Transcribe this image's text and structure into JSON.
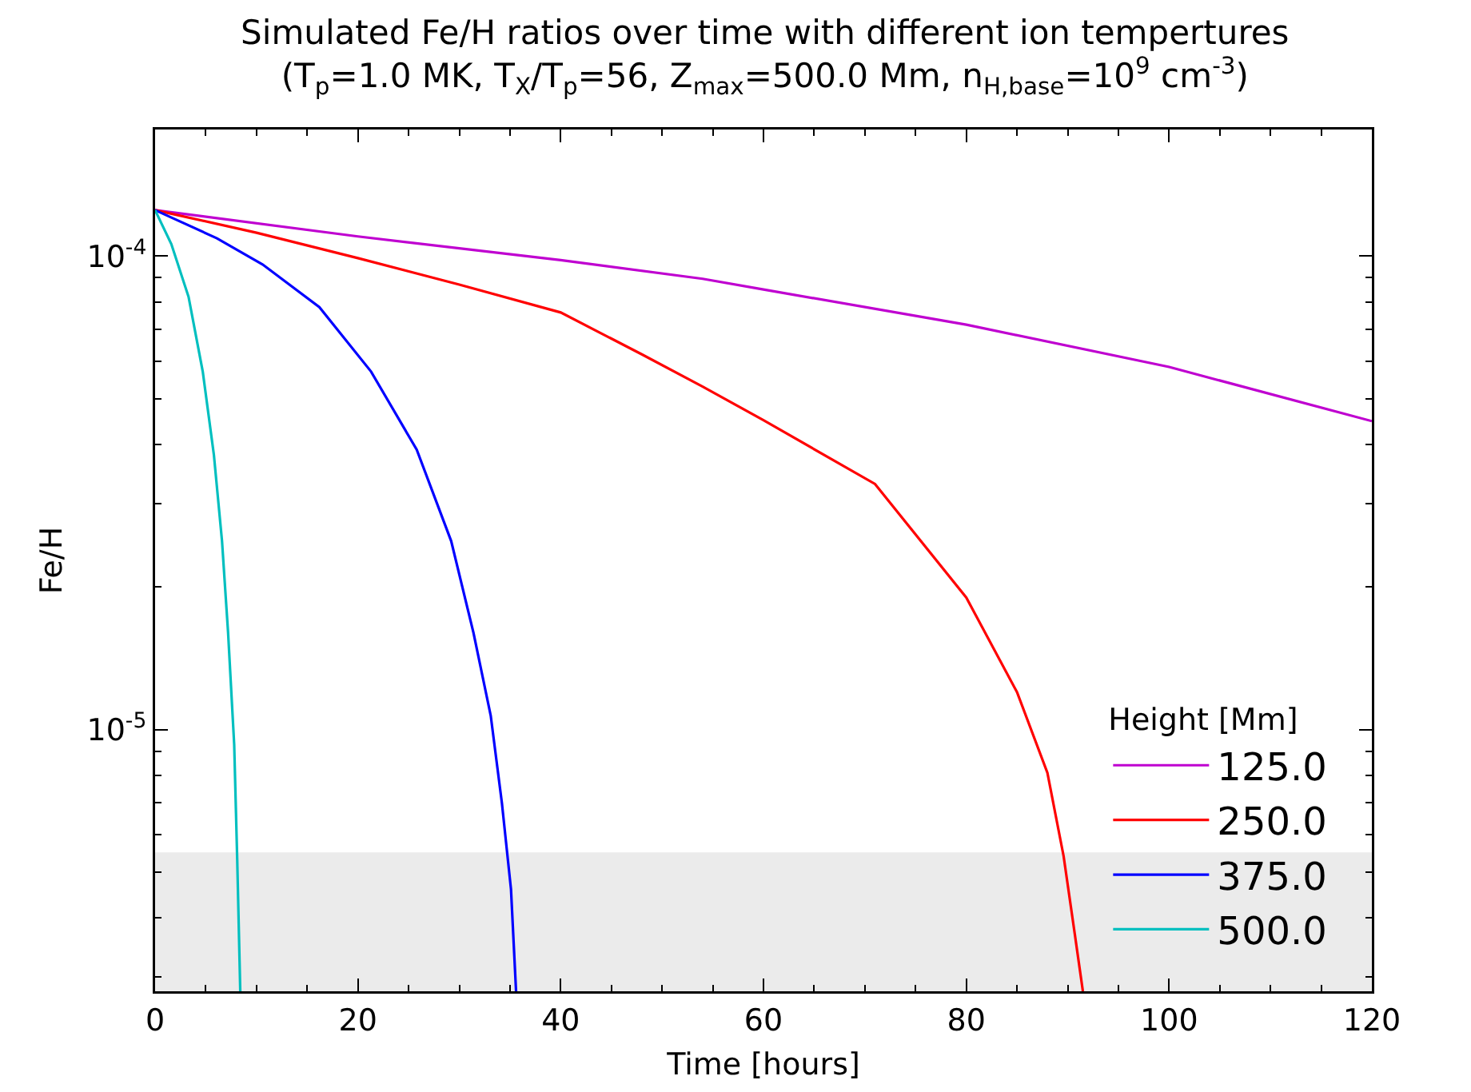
{
  "chart_data": {
    "type": "line",
    "title": "Simulated Fe/H ratios over time with different ion tempertures",
    "subtitle": "(T$_{p}$=1.0 MK, T$_{X}$/T$_{p}$=56, Z$_{max}$=500.0 Mm, n$_{H,base}$=10$^{9}$ cm$^{-3}$)",
    "xlabel": "Time [hours]",
    "ylabel": "Fe/H",
    "legend_title": "Height [Mm]",
    "log": "y",
    "grid": false,
    "legend": "bottom right",
    "marker": "none",
    "line_style": "solid",
    "xlim": [
      0,
      120
    ],
    "xticks": [
      0,
      {
        "value": 5,
        "label": null
      },
      {
        "value": 10,
        "label": null
      },
      {
        "value": 15,
        "label": null
      },
      20,
      {
        "value": 25,
        "label": null
      },
      {
        "value": 30,
        "label": null
      },
      {
        "value": 35,
        "label": null
      },
      40,
      {
        "value": 45,
        "label": null
      },
      {
        "value": 50,
        "label": null
      },
      {
        "value": 55,
        "label": null
      },
      60,
      {
        "value": 65,
        "label": null
      },
      {
        "value": 70,
        "label": null
      },
      {
        "value": 75,
        "label": null
      },
      80,
      {
        "value": 85,
        "label": null
      },
      {
        "value": 90,
        "label": null
      },
      {
        "value": 95,
        "label": null
      },
      100,
      {
        "value": 105,
        "label": null
      },
      {
        "value": 110,
        "label": null
      },
      {
        "value": 115,
        "label": null
      },
      120
    ],
    "ylim": [
      2.8e-06,
      0.000185
    ],
    "yticks": [
      {
        "value": 3e-06,
        "label": null
      },
      {
        "value": 4e-06,
        "label": null
      },
      {
        "value": 5e-06,
        "label": null
      },
      {
        "value": 6e-06,
        "label": null
      },
      {
        "value": 7e-06,
        "label": null
      },
      {
        "value": 8e-06,
        "label": null
      },
      {
        "value": 9e-06,
        "label": null
      },
      {
        "value": 1e-05,
        "label": "10$^{-5}$"
      },
      {
        "value": 2e-05,
        "label": null
      },
      {
        "value": 3e-05,
        "label": null
      },
      {
        "value": 4e-05,
        "label": null
      },
      {
        "value": 5e-05,
        "label": null
      },
      {
        "value": 6e-05,
        "label": null
      },
      {
        "value": 7e-05,
        "label": null
      },
      {
        "value": 8e-05,
        "label": null
      },
      {
        "value": 9e-05,
        "label": null
      },
      {
        "value": 0.0001,
        "label": "10$^{-4}$"
      }
    ],
    "bands": [
      {
        "axis": "y",
        "from": 2.8e-06,
        "to": 5.5e-06,
        "color": "#ebebeb"
      }
    ],
    "series": [
      {
        "name": "125.0",
        "color": "#bf00d0",
        "x": [
          0,
          20,
          40,
          54,
          60,
          80,
          100,
          120
        ],
        "values": [
          0.000125,
          0.00011,
          9.8e-05,
          8.95e-05,
          8.5e-05,
          7.16e-05,
          5.83e-05,
          4.48e-05
        ]
      },
      {
        "name": "250.0",
        "color": "#ff0000",
        "x": [
          0,
          10,
          20,
          30,
          40,
          48,
          54,
          60,
          71,
          80,
          85,
          88,
          89.6,
          90.7,
          91.5
        ],
        "values": [
          0.000125,
          0.000112,
          9.9e-05,
          8.7e-05,
          7.6e-05,
          6.2e-05,
          5.3e-05,
          4.5e-05,
          3.3e-05,
          1.9e-05,
          1.2e-05,
          8.1e-06,
          5.4e-06,
          3.7e-06,
          2.8e-06
        ]
      },
      {
        "name": "375.0",
        "color": "#0000ff",
        "x": [
          0,
          6.1,
          10.6,
          16.2,
          21.3,
          25.8,
          29.2,
          31.4,
          33.1,
          34.2,
          35.1,
          35.6
        ],
        "values": [
          0.000125,
          0.000109,
          9.6e-05,
          7.8e-05,
          5.7e-05,
          3.9e-05,
          2.5e-05,
          1.6e-05,
          1.07e-05,
          7e-06,
          4.6e-06,
          2.8e-06
        ]
      },
      {
        "name": "500.0",
        "color": "#00bfbf",
        "x": [
          0,
          1.6,
          3.3,
          4.7,
          5.8,
          6.6,
          7.2,
          7.8,
          8.1,
          8.4
        ],
        "values": [
          0.000125,
          0.000106,
          8.2e-05,
          5.7e-05,
          3.8e-05,
          2.5e-05,
          1.6e-05,
          9.3e-06,
          5.3e-06,
          2.8e-06
        ]
      }
    ]
  }
}
